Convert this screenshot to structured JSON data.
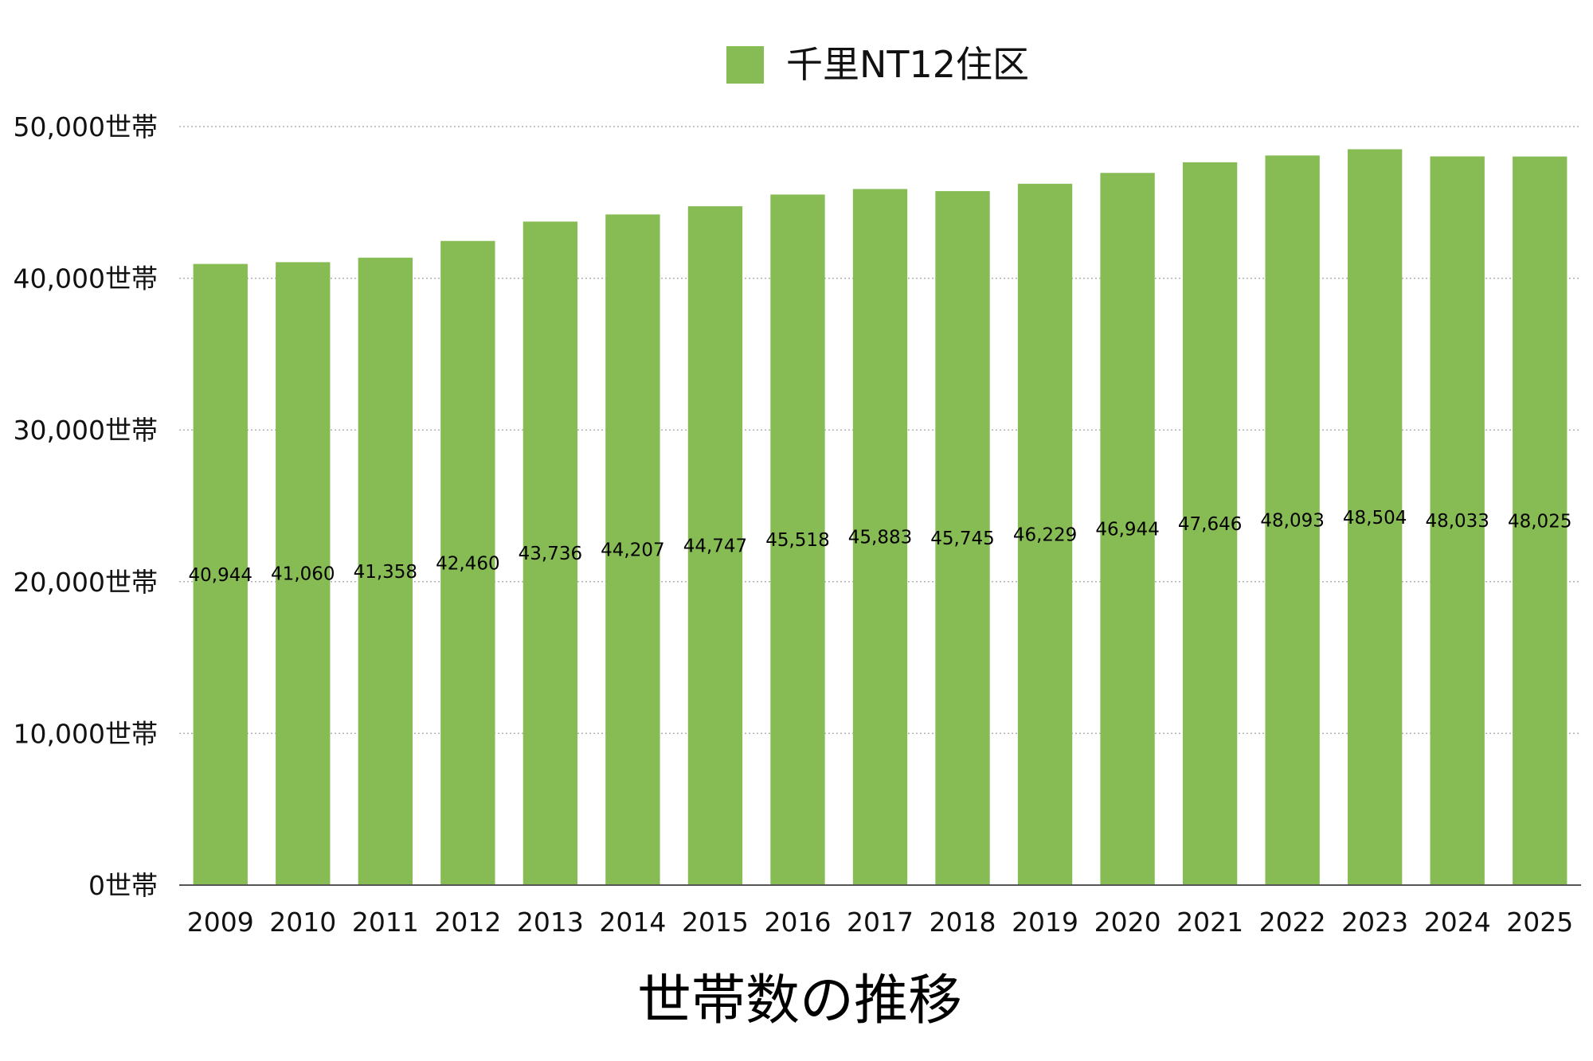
{
  "chart_data": {
    "type": "bar",
    "title": "世帯数の推移",
    "xlabel": "",
    "ylabel": "",
    "categories": [
      "2009",
      "2010",
      "2011",
      "2012",
      "2013",
      "2014",
      "2015",
      "2016",
      "2017",
      "2018",
      "2019",
      "2020",
      "2021",
      "2022",
      "2023",
      "2024",
      "2025"
    ],
    "series": [
      {
        "name": "千里NT12住区",
        "values": [
          40944,
          41060,
          41358,
          42460,
          43736,
          44207,
          44747,
          45518,
          45883,
          45745,
          46229,
          46944,
          47646,
          48093,
          48504,
          48033,
          48025
        ],
        "data_labels": [
          "40,944",
          "41,060",
          "41,358",
          "42,460",
          "43,736",
          "44,207",
          "44,747",
          "45,518",
          "45,883",
          "45,745",
          "46,229",
          "46,944",
          "47,646",
          "48,093",
          "48,504",
          "48,033",
          "48,025"
        ]
      }
    ],
    "ylim": [
      0,
      50000
    ],
    "yticks": [
      0,
      10000,
      20000,
      30000,
      40000,
      50000
    ],
    "ytick_labels": [
      "0世帯",
      "10,000世帯",
      "20,000世帯",
      "30,000世帯",
      "40,000世帯",
      "50,000世帯"
    ],
    "grid": true,
    "grid_style": "dotted",
    "legend_position": "top-center",
    "bar_color": "#86bc53",
    "grid_color": "#b0b0b0",
    "axis_color": "#555555"
  }
}
